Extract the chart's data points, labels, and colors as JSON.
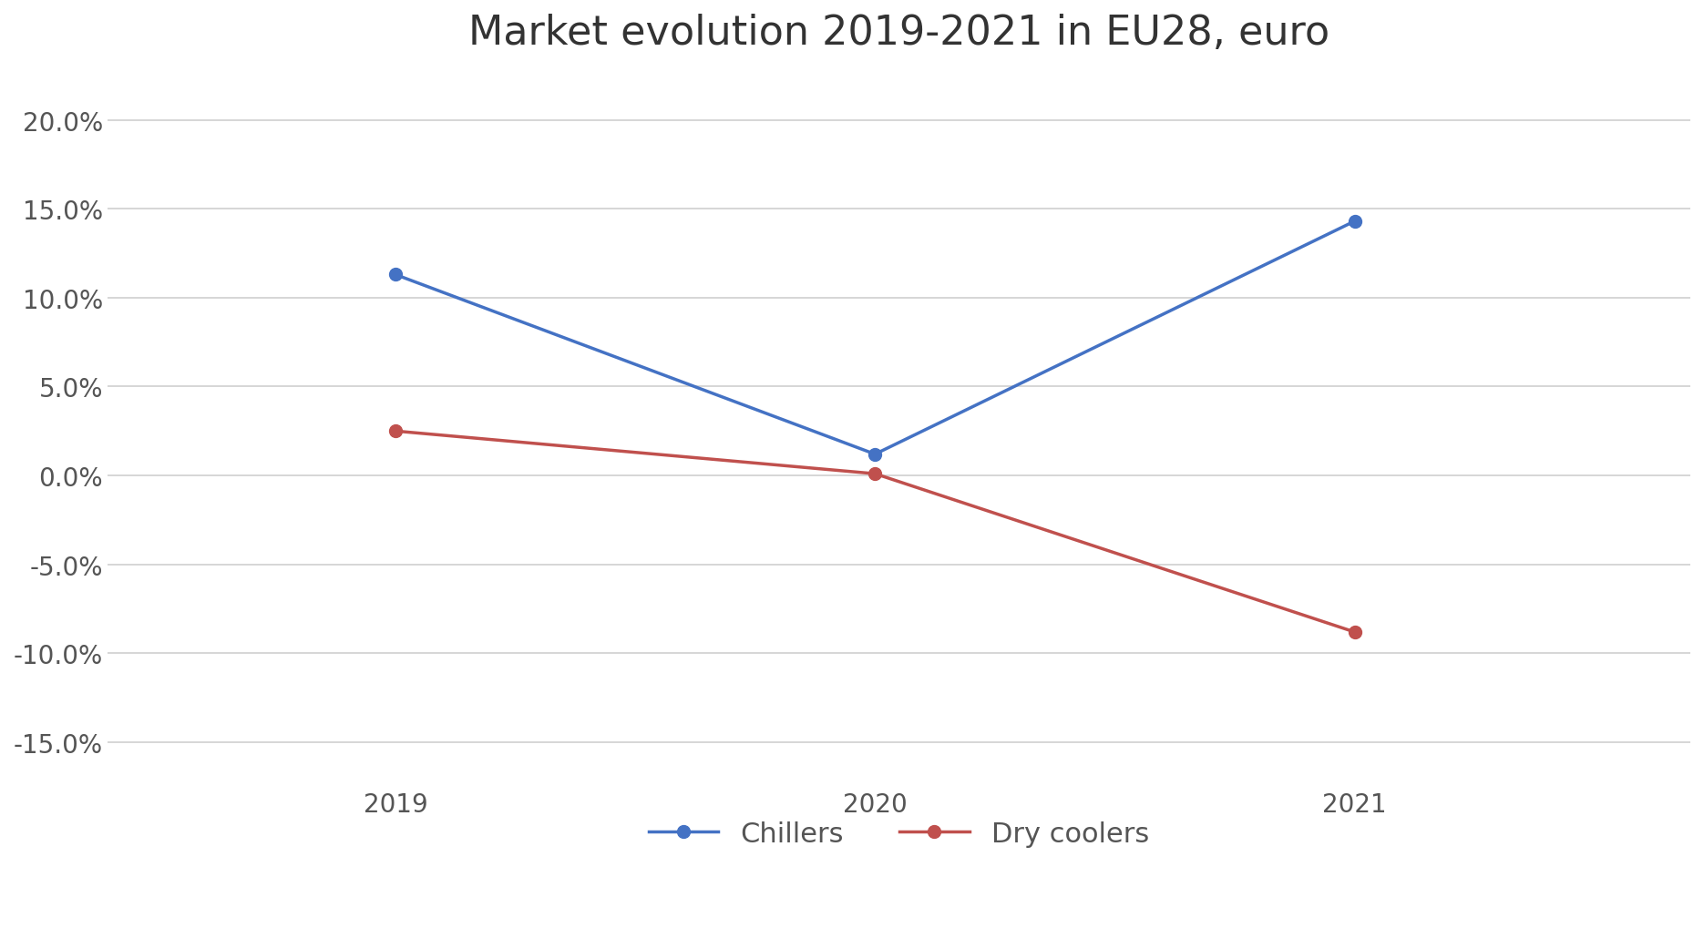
{
  "title": "Market evolution 2019-2021 in EU28, euro",
  "years": [
    2019,
    2020,
    2021
  ],
  "chillers": [
    0.113,
    0.012,
    0.143
  ],
  "dry_coolers": [
    0.025,
    0.001,
    -0.088
  ],
  "chillers_color": "#4472C4",
  "dry_coolers_color": "#C0504D",
  "ylim": [
    -0.175,
    0.225
  ],
  "yticks": [
    -0.15,
    -0.1,
    -0.05,
    0.0,
    0.05,
    0.1,
    0.15,
    0.2
  ],
  "background_color": "#ffffff",
  "plot_bg_color": "#ffffff",
  "grid_color": "#d0d0d0",
  "legend_labels": [
    "Chillers",
    "Dry coolers"
  ],
  "marker_size": 10,
  "line_width": 2.5,
  "title_fontsize": 32,
  "tick_fontsize": 20,
  "legend_fontsize": 22
}
